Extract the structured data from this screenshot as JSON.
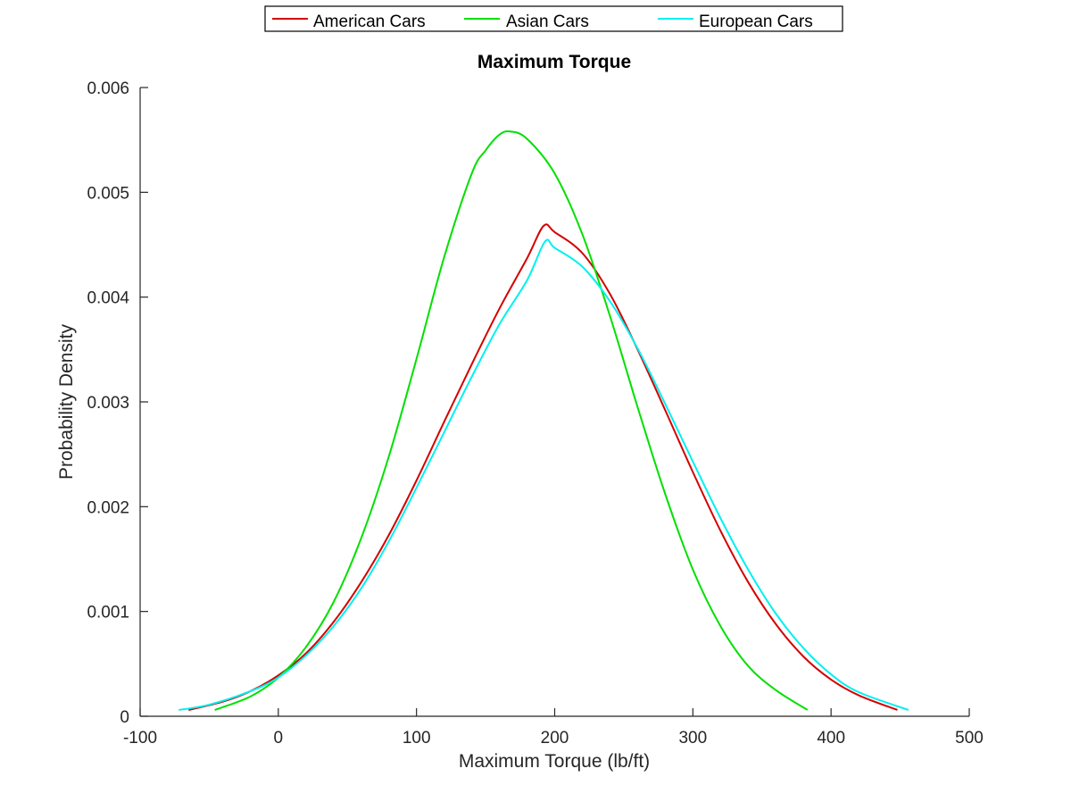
{
  "chart_data": {
    "type": "line",
    "title": "Maximum Torque",
    "xlabel": "Maximum Torque (lb/ft)",
    "ylabel": "Probability Density",
    "xlim": [
      -100,
      500
    ],
    "ylim": [
      0,
      0.006
    ],
    "xticks": [
      "-100",
      "0",
      "100",
      "200",
      "300",
      "400",
      "500"
    ],
    "yticks": [
      "0",
      "0.001",
      "0.002",
      "0.003",
      "0.004",
      "0.005",
      "0.006"
    ],
    "grid": false,
    "legend_position": "top-center",
    "series": [
      {
        "name": "American Cars",
        "color": "#d40000",
        "x": [
          -65,
          -40,
          -20,
          0,
          20,
          40,
          60,
          80,
          100,
          120,
          140,
          160,
          180,
          192,
          200,
          220,
          240,
          260,
          280,
          300,
          320,
          340,
          360,
          380,
          400,
          420,
          448
        ],
        "y": [
          6e-05,
          0.00014,
          0.00024,
          0.00039,
          0.0006,
          0.0009,
          0.00128,
          0.00173,
          0.00225,
          0.00281,
          0.00336,
          0.00389,
          0.00437,
          0.00468,
          0.00462,
          0.00442,
          0.00403,
          0.0035,
          0.00292,
          0.00233,
          0.00177,
          0.00128,
          0.00088,
          0.00057,
          0.00035,
          0.0002,
          6e-05
        ]
      },
      {
        "name": "Asian Cars",
        "color": "#00e000",
        "x": [
          -46,
          -20,
          0,
          20,
          40,
          60,
          80,
          100,
          120,
          140,
          150,
          160,
          168,
          180,
          200,
          220,
          240,
          260,
          280,
          300,
          320,
          340,
          360,
          383
        ],
        "y": [
          6e-05,
          0.00019,
          0.00037,
          0.00066,
          0.00109,
          0.0017,
          0.00248,
          0.00341,
          0.00438,
          0.00518,
          0.0054,
          0.00555,
          0.00558,
          0.00551,
          0.00518,
          0.0046,
          0.00382,
          0.00295,
          0.00212,
          0.0014,
          0.00086,
          0.00048,
          0.00025,
          6e-05
        ]
      },
      {
        "name": "European Cars",
        "color": "#00f0f0",
        "x": [
          -72,
          -50,
          -20,
          0,
          20,
          40,
          60,
          80,
          100,
          120,
          140,
          160,
          180,
          193,
          200,
          220,
          240,
          260,
          280,
          300,
          320,
          340,
          360,
          380,
          400,
          420,
          456
        ],
        "y": [
          6e-05,
          0.00011,
          0.00024,
          0.00037,
          0.00058,
          0.00086,
          0.00122,
          0.00167,
          0.00218,
          0.00271,
          0.00324,
          0.00374,
          0.00416,
          0.00453,
          0.00447,
          0.00429,
          0.00396,
          0.00351,
          0.00298,
          0.00243,
          0.00189,
          0.0014,
          0.00098,
          0.00065,
          0.0004,
          0.00023,
          6e-05
        ]
      }
    ]
  }
}
